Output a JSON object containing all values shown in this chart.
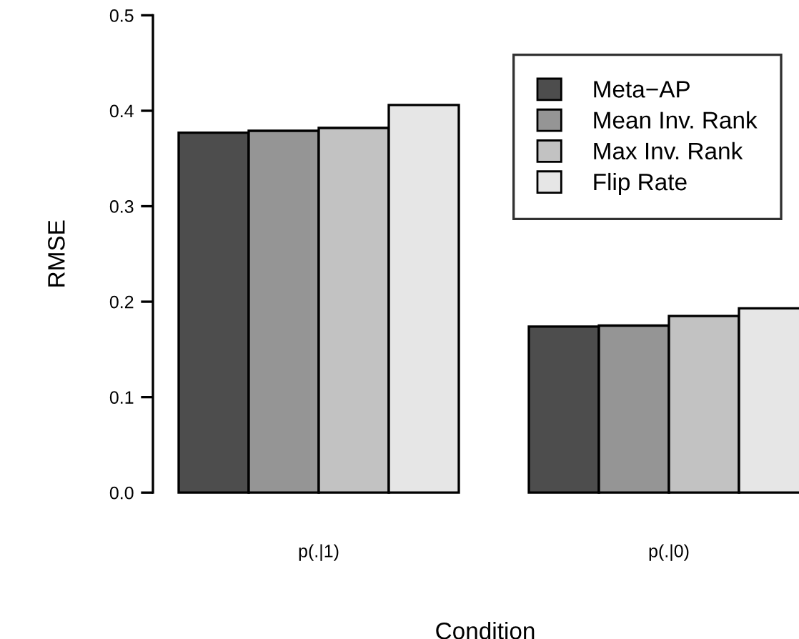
{
  "chart_data": {
    "type": "bar",
    "xlabel": "Condition",
    "ylabel": "RMSE",
    "categories": [
      "p(.|1)",
      "p(.|0)"
    ],
    "series": [
      {
        "name": "Meta−AP",
        "color": "#4d4d4d",
        "values": [
          0.377,
          0.174
        ]
      },
      {
        "name": "Mean Inv. Rank",
        "color": "#959595",
        "values": [
          0.379,
          0.175
        ]
      },
      {
        "name": "Max Inv. Rank",
        "color": "#c2c2c2",
        "values": [
          0.382,
          0.185
        ]
      },
      {
        "name": "Flip Rate",
        "color": "#e6e6e6",
        "values": [
          0.406,
          0.193
        ]
      }
    ],
    "ylim": [
      0,
      0.5
    ],
    "yticks": [
      {
        "value": 0,
        "label": "0.0"
      },
      0.1,
      0.2,
      0.3,
      0.4,
      0.5
    ],
    "grid": false,
    "legend": "top right"
  }
}
